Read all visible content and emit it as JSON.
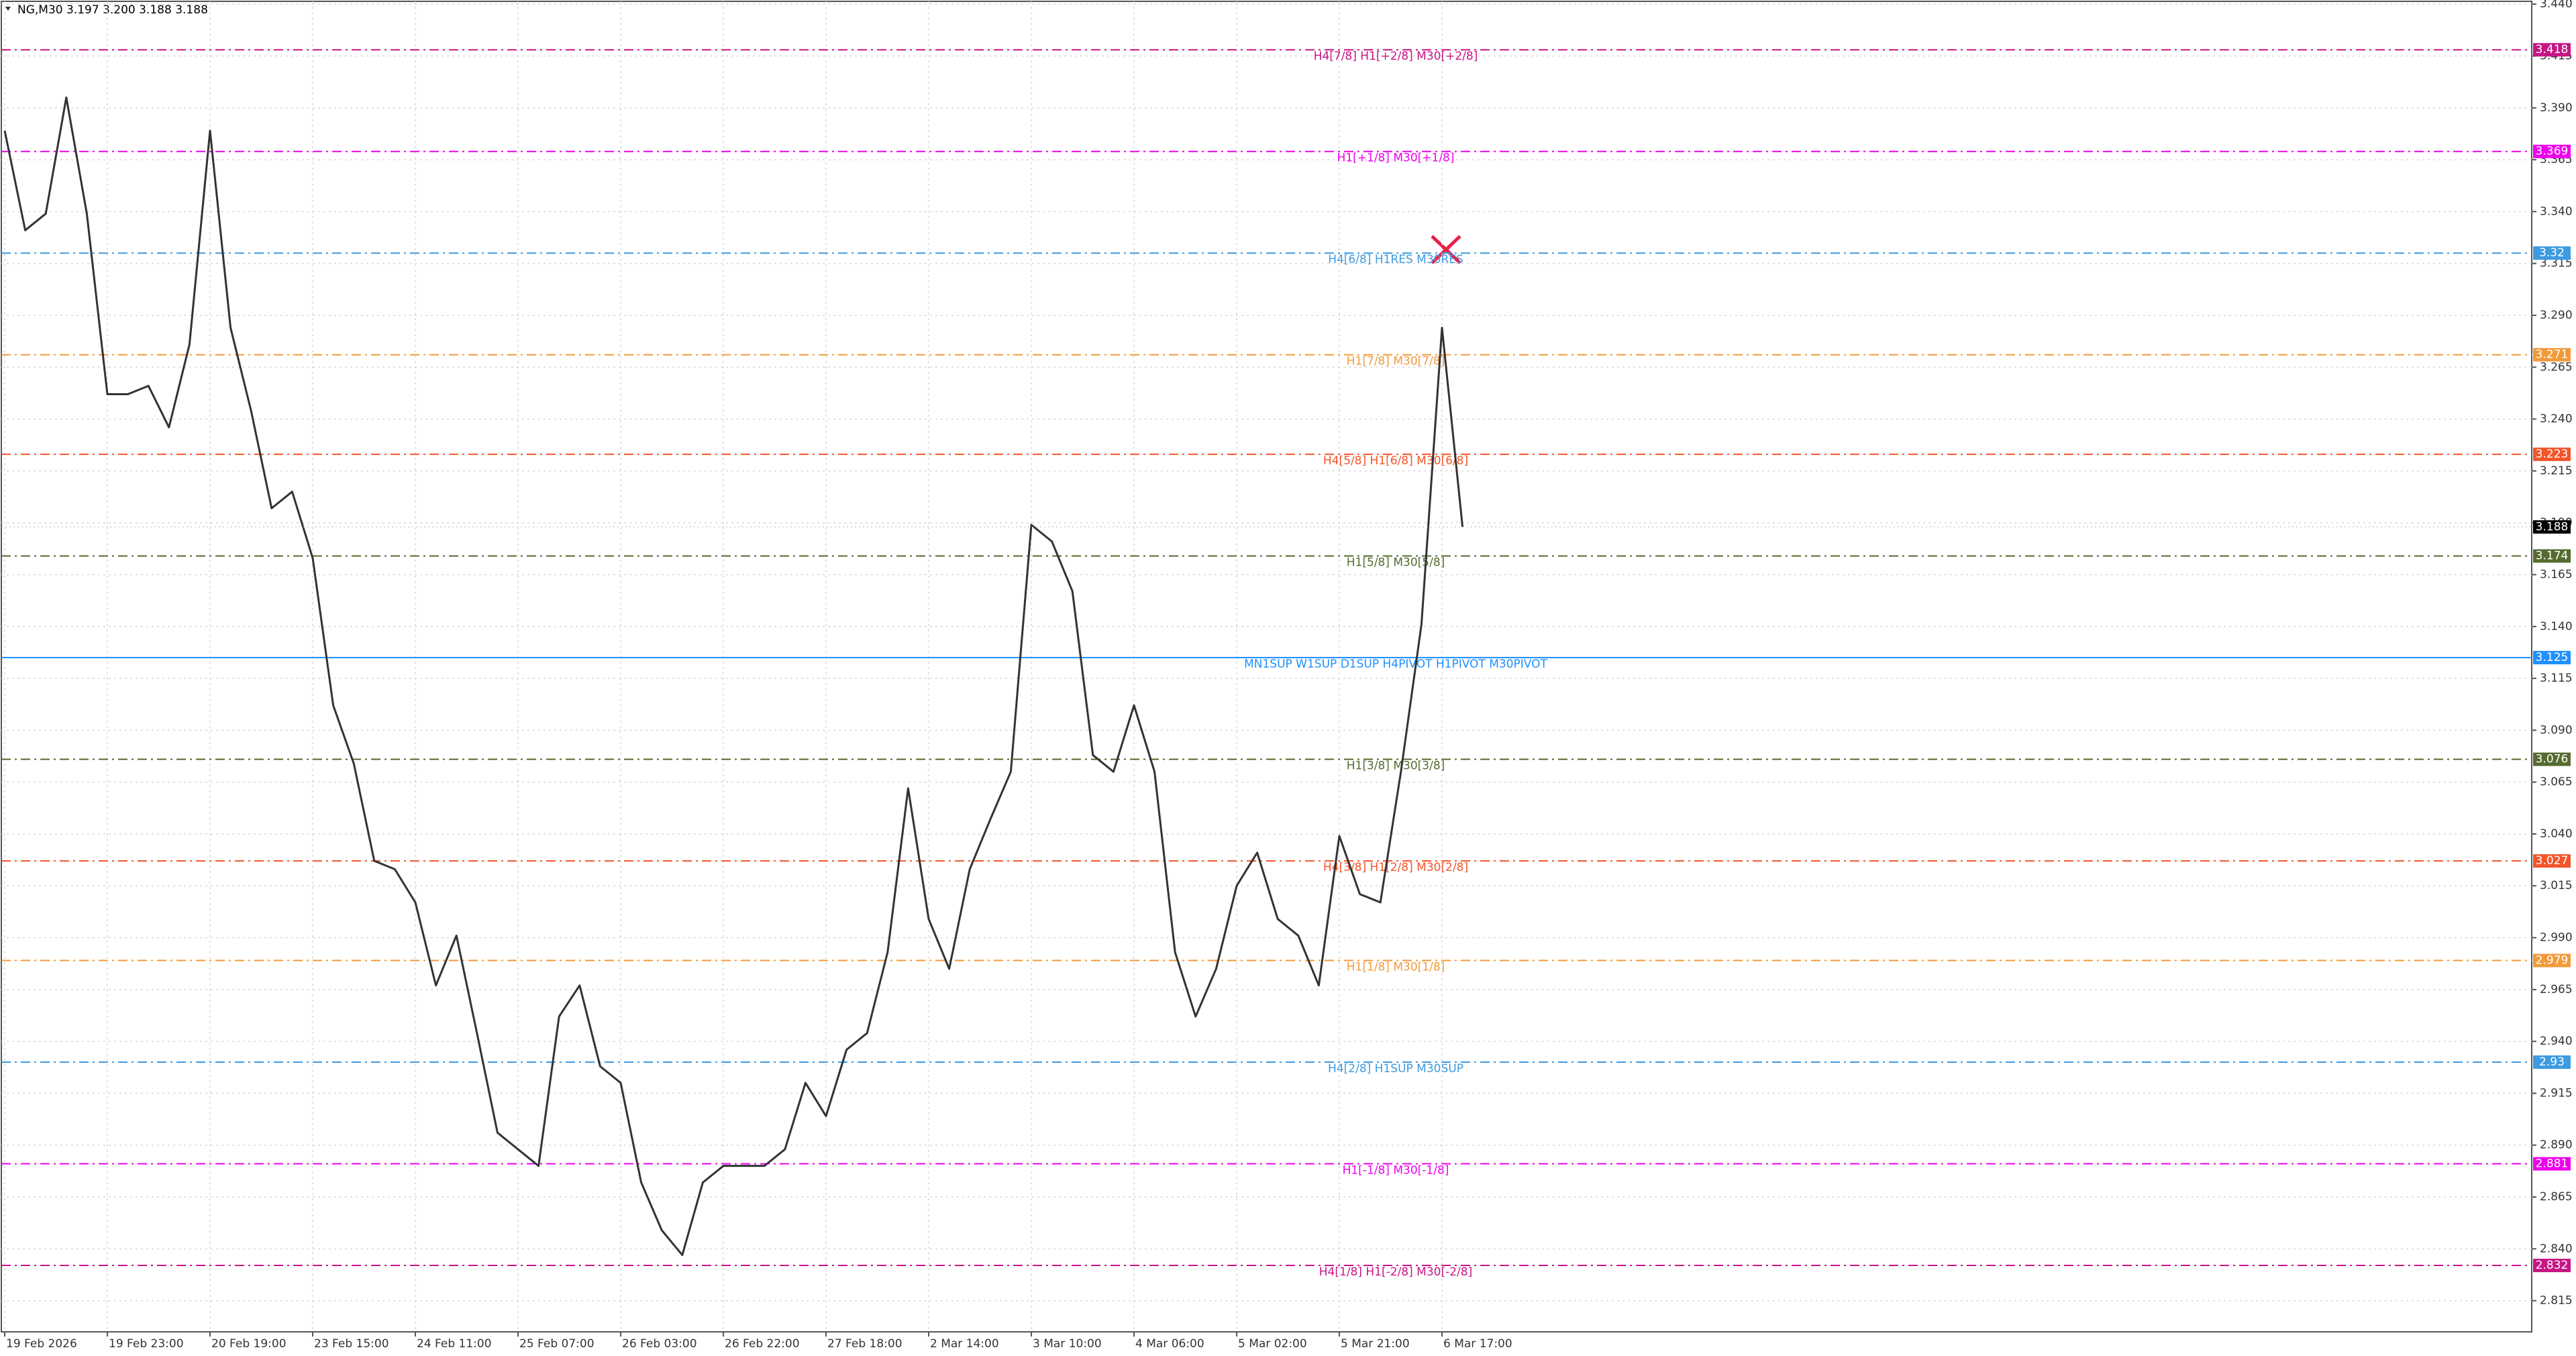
{
  "chart_data": {
    "type": "line",
    "title": "NG,M30  3.197 3.200 3.188 3.188",
    "categories": [
      "19 Feb 2026",
      null,
      null,
      null,
      null,
      "19 Feb 23:00",
      null,
      null,
      null,
      null,
      "20 Feb 19:00",
      null,
      null,
      null,
      null,
      "23 Feb 15:00",
      null,
      null,
      null,
      null,
      "24 Feb 11:00",
      null,
      null,
      null,
      null,
      "25 Feb 07:00",
      null,
      null,
      null,
      null,
      "26 Feb 03:00",
      null,
      null,
      null,
      null,
      "26 Feb 22:00",
      null,
      null,
      null,
      null,
      "27 Feb 18:00",
      null,
      null,
      null,
      null,
      "2 Mar 14:00",
      null,
      null,
      null,
      null,
      "3 Mar 10:00",
      null,
      null,
      null,
      null,
      "4 Mar 06:00",
      null,
      null,
      null,
      null,
      "5 Mar 02:00",
      null,
      null,
      null,
      null,
      "5 Mar 21:00",
      null,
      null,
      null,
      null,
      "6 Mar 17:00",
      null
    ],
    "values": [
      3.379,
      3.331,
      3.339,
      3.395,
      3.339,
      3.252,
      3.252,
      3.256,
      3.236,
      3.276,
      3.379,
      3.284,
      3.244,
      3.197,
      3.205,
      3.173,
      3.102,
      3.074,
      3.027,
      3.023,
      3.007,
      2.967,
      2.991,
      2.944,
      2.896,
      2.888,
      2.88,
      2.952,
      2.967,
      2.928,
      2.92,
      2.872,
      2.849,
      2.837,
      2.872,
      2.88,
      2.88,
      2.88,
      2.888,
      2.92,
      2.904,
      2.936,
      2.944,
      2.983,
      3.062,
      2.999,
      2.975,
      3.023,
      3.047,
      3.07,
      3.189,
      3.181,
      3.157,
      3.078,
      3.07,
      3.102,
      3.07,
      2.983,
      2.952,
      2.975,
      3.015,
      3.031,
      2.999,
      2.991,
      2.967,
      3.039,
      3.011,
      3.007,
      3.07,
      3.141,
      3.284,
      3.188
    ],
    "color": "#333333",
    "ylim": [
      2.8,
      3.442
    ],
    "yticks": [
      {
        "value": 3.44,
        "label": "3.440"
      },
      3.415,
      {
        "value": 3.39,
        "label": "3.390"
      },
      3.365,
      {
        "value": 3.34,
        "label": "3.340"
      },
      3.315,
      {
        "value": 3.29,
        "label": "3.290"
      },
      3.265,
      {
        "value": 3.24,
        "label": "3.240"
      },
      3.215,
      {
        "value": 3.19,
        "label": "3.190"
      },
      3.165,
      {
        "value": 3.14,
        "label": "3.140"
      },
      3.115,
      {
        "value": 3.09,
        "label": "3.090"
      },
      3.065,
      {
        "value": 3.04,
        "label": "3.040"
      },
      3.015,
      {
        "value": 2.99,
        "label": "2.990"
      },
      2.965,
      {
        "value": 2.94,
        "label": "2.940"
      },
      2.915,
      {
        "value": 2.89,
        "label": "2.890"
      },
      2.865,
      {
        "value": 2.84,
        "label": "2.840"
      },
      2.815
    ],
    "grid": true,
    "last_price": 3.188,
    "last_color": "#000000",
    "levels": [
      {
        "value": 3.418,
        "label": "H4[7/8] H1[+2/8] M30[+2/8]",
        "color": "#c71585",
        "style": "dashed"
      },
      {
        "value": 3.369,
        "label": "H1[+1/8] M30[+1/8]",
        "color": "#ee00ee",
        "style": "dashed"
      },
      {
        "value": 3.32,
        "label": "H4[6/8] H1RES M30RES",
        "color": "#3d9be0",
        "style": "dashed"
      },
      {
        "value": 3.271,
        "label": "H1[7/8] M30[7/8]",
        "color": "#f29a3a",
        "style": "dashed"
      },
      {
        "value": 3.223,
        "label": "H4[5/8] H1[6/8] M30[6/8]",
        "color": "#f2552a",
        "style": "dashed"
      },
      {
        "value": 3.174,
        "label": "H1[5/8] M30[5/8]",
        "color": "#556b2f",
        "style": "dashed"
      },
      {
        "value": 3.125,
        "label": "MN1SUP W1SUP D1SUP H4PIVOT H1PIVOT M30PIVOT",
        "color": "#1e90ff",
        "style": "solid"
      },
      {
        "value": 3.076,
        "label": "H1[3/8] M30[3/8]",
        "color": "#556b2f",
        "style": "dashed"
      },
      {
        "value": 3.027,
        "label": "H4[3/8] H1[2/8] M30[2/8]",
        "color": "#f2552a",
        "style": "dashed"
      },
      {
        "value": 2.979,
        "label": "H1[1/8] M30[1/8]",
        "color": "#f29a3a",
        "style": "dashed"
      },
      {
        "value": 2.93,
        "label": "H4[2/8] H1SUP M30SUP",
        "color": "#3d9be0",
        "style": "dashed"
      },
      {
        "value": 2.881,
        "label": "H1[-1/8] M30[-1/8]",
        "color": "#ee00ee",
        "style": "dashed"
      },
      {
        "value": 2.832,
        "label": "H4[1/8] H1[-2/8] M30[-2/8]",
        "color": "#c71585",
        "style": "dashed"
      }
    ]
  }
}
